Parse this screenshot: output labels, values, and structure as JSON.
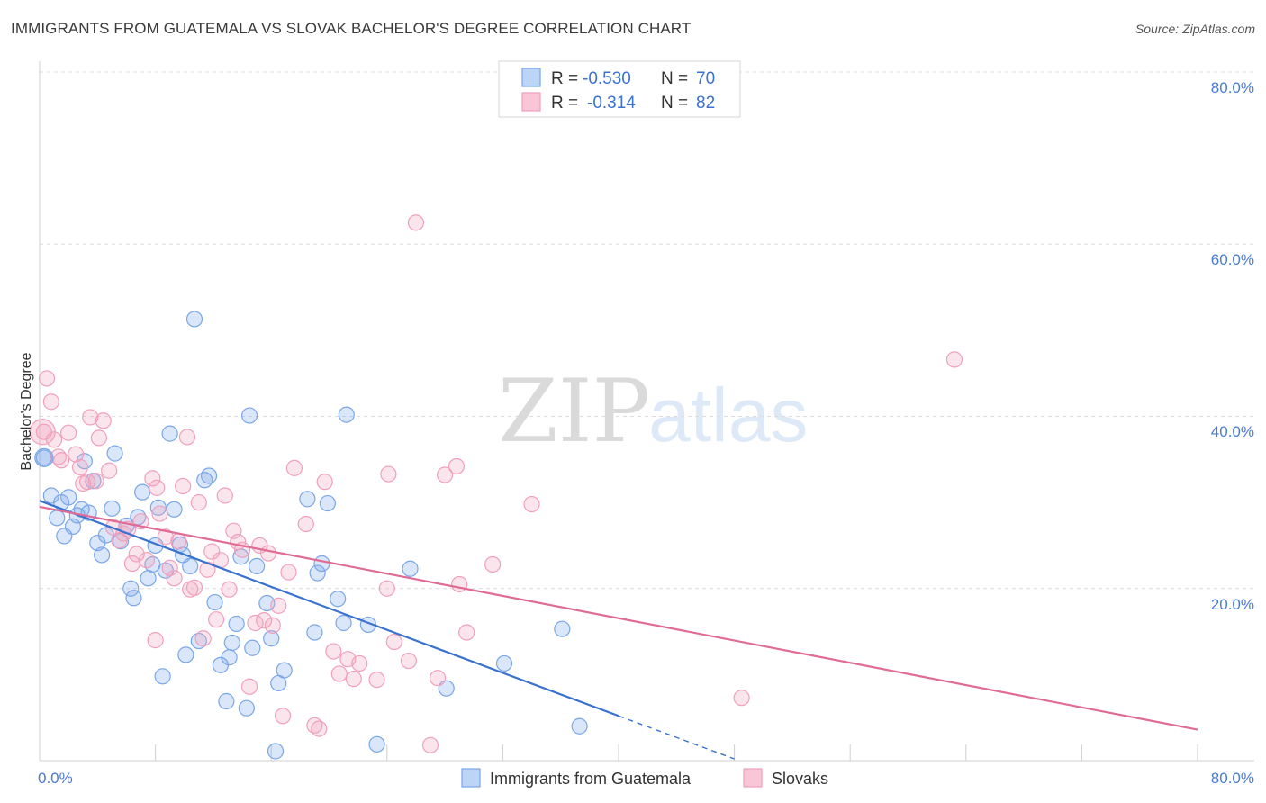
{
  "header": {
    "title": "IMMIGRANTS FROM GUATEMALA VS SLOVAK BACHELOR'S DEGREE CORRELATION CHART",
    "source": "Source: ZipAtlas.com"
  },
  "watermark": {
    "zip": "ZIP",
    "atlas": "atlas"
  },
  "legend_top": [
    {
      "r_label": "R =",
      "r_value": "-0.530",
      "n_label": "N =",
      "n_value": "70"
    },
    {
      "r_label": "R =",
      "r_value": "-0.314",
      "n_label": "N =",
      "n_value": "82"
    }
  ],
  "chart_data": {
    "type": "scatter",
    "title": "IMMIGRANTS FROM GUATEMALA VS SLOVAK BACHELOR'S DEGREE CORRELATION CHART",
    "xlabel": "",
    "ylabel": "Bachelor's Degree",
    "xlim": [
      0,
      80
    ],
    "ylim": [
      0,
      80
    ],
    "x_tick_labels": [
      "0.0%",
      "80.0%"
    ],
    "y_tick_labels": [
      "20.0%",
      "40.0%",
      "60.0%",
      "80.0%"
    ],
    "y_ticks": [
      20,
      40,
      60,
      80
    ],
    "grid": true,
    "legend_placement": "top-center",
    "series": [
      {
        "name": "Immigrants from Guatemala",
        "color": "#7aa7e8",
        "line_color": "#3a72d0",
        "trend": {
          "x0": 0,
          "y0": 30.2,
          "x1": 40,
          "y1": 5.2,
          "dash_to_x": 48,
          "dash_to_y": 0.2
        },
        "points": [
          [
            0.3,
            35.2
          ],
          [
            0.8,
            30.8
          ],
          [
            1.2,
            28.2
          ],
          [
            1.5,
            30.0
          ],
          [
            1.7,
            26.1
          ],
          [
            2.0,
            30.6
          ],
          [
            2.3,
            27.2
          ],
          [
            2.6,
            28.5
          ],
          [
            2.9,
            29.2
          ],
          [
            3.1,
            34.8
          ],
          [
            3.4,
            28.8
          ],
          [
            3.7,
            32.5
          ],
          [
            4.0,
            25.3
          ],
          [
            4.3,
            23.9
          ],
          [
            4.6,
            26.2
          ],
          [
            5.0,
            29.3
          ],
          [
            5.2,
            35.7
          ],
          [
            5.6,
            25.5
          ],
          [
            6.0,
            27.3
          ],
          [
            6.3,
            20.0
          ],
          [
            6.5,
            18.9
          ],
          [
            6.8,
            28.3
          ],
          [
            7.1,
            31.2
          ],
          [
            7.5,
            21.2
          ],
          [
            7.8,
            22.8
          ],
          [
            8.0,
            25.0
          ],
          [
            8.2,
            29.4
          ],
          [
            8.5,
            9.8
          ],
          [
            8.7,
            22.1
          ],
          [
            9.0,
            38.0
          ],
          [
            9.3,
            29.2
          ],
          [
            9.7,
            25.1
          ],
          [
            9.9,
            23.9
          ],
          [
            10.1,
            12.3
          ],
          [
            10.4,
            22.6
          ],
          [
            10.7,
            51.3
          ],
          [
            11.0,
            13.9
          ],
          [
            11.4,
            32.6
          ],
          [
            11.7,
            33.1
          ],
          [
            12.1,
            18.4
          ],
          [
            12.5,
            11.1
          ],
          [
            12.9,
            6.9
          ],
          [
            13.1,
            12.0
          ],
          [
            13.3,
            13.7
          ],
          [
            13.6,
            15.9
          ],
          [
            13.9,
            23.7
          ],
          [
            14.3,
            6.1
          ],
          [
            14.5,
            40.1
          ],
          [
            14.7,
            13.1
          ],
          [
            15.0,
            22.6
          ],
          [
            15.7,
            18.3
          ],
          [
            16.0,
            14.2
          ],
          [
            16.3,
            1.1
          ],
          [
            16.5,
            9.0
          ],
          [
            16.9,
            10.5
          ],
          [
            18.5,
            30.4
          ],
          [
            19.0,
            14.9
          ],
          [
            19.2,
            21.8
          ],
          [
            19.5,
            22.9
          ],
          [
            19.9,
            29.9
          ],
          [
            20.6,
            18.8
          ],
          [
            21.0,
            16.0
          ],
          [
            21.2,
            40.2
          ],
          [
            22.7,
            15.8
          ],
          [
            23.3,
            1.9
          ],
          [
            25.6,
            22.3
          ],
          [
            28.1,
            8.4
          ],
          [
            32.1,
            11.3
          ],
          [
            36.1,
            15.3
          ],
          [
            37.3,
            4.0
          ]
        ]
      },
      {
        "name": "Slovaks",
        "color": "#f0a0bc",
        "line_color": "#e06c95",
        "trend": {
          "x0": 0,
          "y0": 29.5,
          "x1": 80,
          "y1": 3.6
        },
        "points": [
          [
            0.3,
            38.2
          ],
          [
            0.5,
            44.4
          ],
          [
            0.8,
            41.7
          ],
          [
            1.0,
            37.3
          ],
          [
            1.3,
            35.3
          ],
          [
            1.5,
            34.9
          ],
          [
            2.0,
            38.1
          ],
          [
            2.5,
            35.6
          ],
          [
            2.8,
            34.1
          ],
          [
            3.0,
            32.2
          ],
          [
            3.3,
            32.4
          ],
          [
            3.5,
            39.9
          ],
          [
            3.9,
            32.5
          ],
          [
            4.1,
            37.5
          ],
          [
            4.4,
            39.5
          ],
          [
            4.8,
            33.7
          ],
          [
            5.1,
            27.1
          ],
          [
            5.5,
            25.6
          ],
          [
            5.8,
            26.4
          ],
          [
            6.1,
            26.9
          ],
          [
            6.4,
            22.9
          ],
          [
            6.7,
            24.0
          ],
          [
            7.0,
            27.8
          ],
          [
            7.4,
            23.3
          ],
          [
            7.8,
            32.8
          ],
          [
            8.1,
            31.7
          ],
          [
            8.3,
            28.7
          ],
          [
            8.7,
            26.0
          ],
          [
            9.0,
            22.4
          ],
          [
            9.3,
            21.2
          ],
          [
            9.6,
            25.5
          ],
          [
            9.9,
            31.9
          ],
          [
            10.2,
            37.6
          ],
          [
            10.4,
            19.9
          ],
          [
            10.7,
            20.1
          ],
          [
            11.0,
            30.0
          ],
          [
            11.3,
            14.2
          ],
          [
            11.6,
            22.2
          ],
          [
            11.9,
            24.3
          ],
          [
            12.2,
            16.4
          ],
          [
            12.5,
            23.3
          ],
          [
            12.8,
            30.8
          ],
          [
            13.1,
            19.9
          ],
          [
            13.4,
            26.7
          ],
          [
            13.7,
            25.4
          ],
          [
            14.0,
            24.5
          ],
          [
            14.5,
            8.6
          ],
          [
            14.9,
            16.0
          ],
          [
            15.2,
            25.0
          ],
          [
            15.5,
            16.3
          ],
          [
            15.8,
            24.1
          ],
          [
            16.1,
            15.7
          ],
          [
            16.5,
            18.0
          ],
          [
            16.8,
            5.2
          ],
          [
            17.2,
            21.9
          ],
          [
            17.6,
            34.0
          ],
          [
            18.4,
            27.5
          ],
          [
            19.0,
            4.1
          ],
          [
            19.3,
            3.7
          ],
          [
            19.7,
            32.4
          ],
          [
            20.3,
            12.7
          ],
          [
            20.7,
            10.1
          ],
          [
            21.3,
            11.8
          ],
          [
            21.7,
            9.5
          ],
          [
            22.1,
            11.3
          ],
          [
            23.3,
            9.4
          ],
          [
            24.1,
            33.3
          ],
          [
            24.5,
            13.8
          ],
          [
            25.5,
            11.6
          ],
          [
            26.0,
            62.5
          ],
          [
            27.0,
            1.8
          ],
          [
            27.5,
            9.6
          ],
          [
            28.0,
            33.2
          ],
          [
            28.8,
            34.2
          ],
          [
            29.5,
            14.9
          ],
          [
            31.3,
            22.8
          ],
          [
            34.0,
            29.8
          ],
          [
            48.5,
            7.3
          ],
          [
            63.2,
            46.6
          ],
          [
            29.0,
            20.5
          ],
          [
            24.0,
            20.0
          ],
          [
            8.0,
            14.0
          ]
        ]
      }
    ]
  }
}
